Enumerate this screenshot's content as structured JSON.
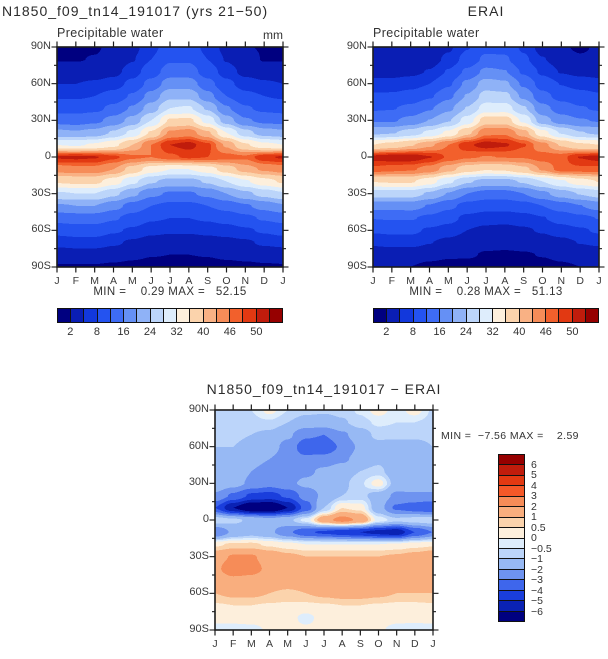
{
  "figure": {
    "background": "#ffffff",
    "text_color": "#2e2e2e"
  },
  "chart_data": {
    "type": "heatmap",
    "subtype": "filled-contour latitude-by-month (Hovmoller) climatology",
    "x_categories": [
      "J",
      "F",
      "M",
      "A",
      "M",
      "J",
      "J",
      "A",
      "S",
      "O",
      "N",
      "D",
      "J"
    ],
    "y_tick_labels": [
      "90N",
      "60N",
      "30N",
      "0",
      "30S",
      "60S",
      "90S"
    ],
    "y_lats": [
      90,
      80,
      70,
      60,
      50,
      40,
      30,
      20,
      10,
      0,
      -10,
      -20,
      -30,
      -40,
      -50,
      -60,
      -70,
      -80,
      -90
    ],
    "grid": "off",
    "pw_scale": {
      "levels": [
        2,
        5,
        8,
        12,
        16,
        20,
        24,
        28,
        32,
        36,
        40,
        43,
        46,
        48,
        50,
        52
      ],
      "colors": [
        "#000080",
        "#0A1EB4",
        "#1238DC",
        "#2453F0",
        "#3E6CF5",
        "#6590F5",
        "#8FB2F7",
        "#BCD5FA",
        "#DEEDFC",
        "#FDEFDC",
        "#FBD3AC",
        "#F9B184",
        "#F68C58",
        "#F2602C",
        "#E23912",
        "#C01C0C",
        "#960000"
      ],
      "bar_tick_labels": [
        "2",
        "8",
        "16",
        "24",
        "32",
        "40",
        "46",
        "50"
      ],
      "bar_tick_boundary_index": [
        1,
        3,
        5,
        7,
        9,
        11,
        13,
        15
      ],
      "segment_count": 17
    },
    "diff_scale": {
      "levels": [
        -6,
        -5,
        -4,
        -3,
        -2,
        -1,
        -0.5,
        0,
        0.5,
        1,
        2,
        3,
        4,
        5,
        6
      ],
      "colors": [
        "#000080",
        "#0A22B4",
        "#1A3EDC",
        "#3E66EC",
        "#6E93F0",
        "#97B9F4",
        "#BCD5FA",
        "#DEEDFC",
        "#FDEFDC",
        "#FBD3AC",
        "#F9AE7E",
        "#F68C58",
        "#F45828",
        "#E23912",
        "#C01C0C",
        "#960000"
      ],
      "bar_tick_labels": [
        "6",
        "5",
        "4",
        "3",
        "2",
        "1",
        "0.5",
        "0",
        "−0.5",
        "−1",
        "−2",
        "−3",
        "−4",
        "−5",
        "−6"
      ],
      "segment_count": 16
    },
    "panels": [
      {
        "id": "model",
        "title": "N1850_f09_tn14_191017 (yrs 21−50)",
        "subtitle": "Precipitable water",
        "units": "mm",
        "scale": "pw",
        "stats": {
          "min": 0.29,
          "max": 52.15
        },
        "min_max_label": "MIN =    0.29 MAX =   52.15",
        "values": [
          [
            1.8,
            1.7,
            1.8,
            2.5,
            4,
            7,
            10,
            10,
            7,
            4,
            2.1,
            1.9,
            1.8
          ],
          [
            1.9,
            1.9,
            2.1,
            2.8,
            4.8,
            8,
            11.5,
            11.5,
            8,
            4.8,
            2.8,
            1.9,
            1.9
          ],
          [
            3,
            3,
            3.2,
            4,
            6.5,
            10,
            14,
            14,
            10,
            6.5,
            4,
            3.2,
            3
          ],
          [
            5,
            5,
            5.5,
            6.5,
            9,
            13.5,
            18,
            18,
            13.5,
            9,
            6.5,
            5.5,
            5
          ],
          [
            7.5,
            7.5,
            8,
            9.5,
            12.5,
            17.5,
            23,
            23,
            17.5,
            12,
            9,
            8,
            7.5
          ],
          [
            10.5,
            10.5,
            11,
            13,
            16.5,
            22,
            28,
            28.5,
            23.5,
            16.5,
            12.5,
            11,
            10.5
          ],
          [
            14.5,
            14,
            15,
            17.5,
            21.5,
            28,
            36.5,
            37,
            30.5,
            22,
            16.5,
            15,
            14.5
          ],
          [
            21,
            20.5,
            21.5,
            24.5,
            29,
            36.5,
            43.5,
            44.5,
            40.5,
            32,
            25.5,
            22,
            21
          ],
          [
            32,
            31.5,
            32.5,
            35,
            40,
            46,
            50,
            50.8,
            48.5,
            42.5,
            36.5,
            33,
            32
          ],
          [
            50.3,
            50.5,
            50.2,
            48.5,
            46.5,
            46,
            47.5,
            48.5,
            48,
            47,
            46.5,
            49.5,
            50.3
          ],
          [
            44.5,
            45,
            45,
            43,
            38.5,
            34,
            32,
            32,
            34,
            38,
            41.5,
            43.5,
            44.5
          ],
          [
            36.5,
            37,
            37,
            34,
            29,
            24.5,
            22.5,
            22.5,
            24.5,
            28,
            31.5,
            34.5,
            36.5
          ],
          [
            27.5,
            28,
            28,
            25,
            21,
            17,
            15.5,
            15.5,
            17,
            20,
            23,
            25.5,
            27.5
          ],
          [
            19.5,
            20,
            20,
            17.5,
            14.5,
            12,
            11,
            11,
            12,
            13.5,
            15.5,
            17.5,
            19.5
          ],
          [
            13.5,
            14,
            14,
            12.5,
            10.5,
            8.5,
            8,
            8,
            8.5,
            9.5,
            11,
            12.5,
            13.5
          ],
          [
            9.5,
            10,
            10,
            8.5,
            7.5,
            6,
            5.5,
            5.5,
            6,
            6.5,
            7.5,
            8.5,
            9.5
          ],
          [
            6,
            6.5,
            6.5,
            5.5,
            4.5,
            3.5,
            3.2,
            3.2,
            3.5,
            4,
            4.5,
            5.5,
            6
          ],
          [
            3.2,
            3.4,
            3.4,
            3,
            2.5,
            2.1,
            2,
            2,
            2.1,
            2.4,
            2.7,
            3,
            3.2
          ],
          [
            1.8,
            1.8,
            1.8,
            1.6,
            1.4,
            1.2,
            1.1,
            1.1,
            1.2,
            1.4,
            1.5,
            1.7,
            1.8
          ]
        ]
      },
      {
        "id": "erai",
        "title": "ERAI",
        "subtitle": "Precipitable water",
        "units": "",
        "scale": "pw",
        "stats": {
          "min": 0.28,
          "max": 51.13
        },
        "min_max_label": "MIN =    0.28 MAX =   51.13",
        "values": [
          [
            2.4,
            2.3,
            2.3,
            2.3,
            4.5,
            7.8,
            10.9,
            10.8,
            7.4,
            3.7,
            2.4,
            1.6,
            2.4
          ],
          [
            2.6,
            2.6,
            2.8,
            3.4,
            5.8,
            9.4,
            12.9,
            12.6,
            8.7,
            5.2,
            3.3,
            2.4,
            2.6
          ],
          [
            3.9,
            3.9,
            4.2,
            5.2,
            8.3,
            12.8,
            17,
            16.2,
            11.4,
            7.3,
            4.8,
            4.1,
            3.9
          ],
          [
            6,
            6,
            6.7,
            8,
            11.4,
            17.1,
            21.8,
            20.8,
            15.3,
            10.3,
            7.9,
            6.7,
            6
          ],
          [
            8.5,
            8.6,
            9.5,
            11.5,
            15.1,
            20.3,
            25.6,
            25.2,
            19.1,
            13.2,
            10.6,
            9.4,
            8.5
          ],
          [
            11.5,
            11.8,
            13,
            15.6,
            19.1,
            24.2,
            29.8,
            29.9,
            24.5,
            17.3,
            14.1,
            12.3,
            11.5
          ],
          [
            15.7,
            15.6,
            17.2,
            20.1,
            23.7,
            29.8,
            38.1,
            38.2,
            31.1,
            21.7,
            17.9,
            16.3,
            15.7
          ],
          [
            23.2,
            23.7,
            25.7,
            28.9,
            32.8,
            39.1,
            45.3,
            45.5,
            41.3,
            33.4,
            27.7,
            24.2,
            23.2
          ],
          [
            36,
            37.5,
            39.7,
            42.4,
            46,
            49.6,
            51,
            50.3,
            48.2,
            44.1,
            39.7,
            36.6,
            36
          ],
          [
            50.8,
            51.3,
            51.4,
            50.1,
            47.7,
            46.3,
            45.9,
            46.1,
            46.2,
            47.2,
            47.3,
            50.1,
            50.8
          ],
          [
            47.5,
            46.8,
            46.4,
            44.8,
            41.3,
            37.8,
            36.2,
            36.6,
            39,
            43.4,
            47.3,
            47.5,
            47.5
          ],
          [
            36.1,
            36.4,
            36.4,
            33.6,
            28.8,
            24.5,
            22.5,
            22.5,
            24.5,
            28,
            31.4,
            34.2,
            36.1
          ],
          [
            25.9,
            25.9,
            25.9,
            23.4,
            19.8,
            16,
            14.5,
            14.5,
            16,
            19,
            21.9,
            24.2,
            25.9
          ],
          [
            17.7,
            17.4,
            17.7,
            15.7,
            13,
            10.6,
            9.5,
            9.4,
            10.4,
            12,
            14.1,
            15.9,
            17.7
          ],
          [
            12.1,
            12.3,
            12.3,
            11.1,
            9.2,
            7.1,
            6.3,
            6.1,
            6.6,
            7.8,
            9.6,
            11.1,
            12.1
          ],
          [
            8.5,
            8.8,
            8.8,
            7.5,
            6.6,
            5,
            4.3,
            4.1,
            4.6,
            5.3,
            6.5,
            7.5,
            8.5
          ],
          [
            5.6,
            6,
            6,
            5.1,
            4.1,
            3.1,
            2.8,
            2.7,
            3,
            3.6,
            4.1,
            5.1,
            5.6
          ],
          [
            2.9,
            3.1,
            3.1,
            2.7,
            2.3,
            2.3,
            1.8,
            1.7,
            1.8,
            2.1,
            2.5,
            2.8,
            2.9
          ],
          [
            2.1,
            2.1,
            2,
            1.5,
            1.3,
            1.1,
            1,
            1,
            1.1,
            1.3,
            1.7,
            2,
            2.1
          ]
        ]
      },
      {
        "id": "difference",
        "title": "N1850_f09_tn14_191017 − ERAI",
        "subtitle": "",
        "units": "",
        "scale": "diff",
        "stats": {
          "min": -7.56,
          "max": 2.59
        },
        "min_max_label": "MIN =  −7.56 MAX =    2.59",
        "values": [
          [
            -0.6,
            -0.6,
            -0.5,
            0.2,
            -0.5,
            -0.8,
            -0.9,
            -0.8,
            -0.4,
            0.3,
            -0.3,
            0.3,
            -0.6
          ],
          [
            -0.7,
            -0.7,
            -0.7,
            -0.6,
            -1,
            -1.4,
            -1.4,
            -1.1,
            -0.7,
            -0.4,
            -0.5,
            -0.5,
            -0.7
          ],
          [
            -0.9,
            -0.9,
            -1,
            -1.2,
            -1.8,
            -2.8,
            -3,
            -2.2,
            -1.4,
            -0.8,
            -0.8,
            -0.9,
            -0.9
          ],
          [
            -1,
            -1,
            -1.2,
            -1.5,
            -2.4,
            -3.6,
            -3.8,
            -2.8,
            -1.8,
            -1.3,
            -1.4,
            -1.2,
            -1
          ],
          [
            -1,
            -1.1,
            -1.5,
            -2,
            -2.6,
            -2.8,
            -2.6,
            -2.2,
            -1.6,
            -1.2,
            -1.6,
            -1.4,
            -1
          ],
          [
            -1,
            -1.3,
            -2,
            -2.6,
            -2.6,
            -2.2,
            -1.8,
            -1.4,
            -1,
            -0.8,
            -1.6,
            -1.3,
            -1
          ],
          [
            -1.2,
            -1.6,
            -2.2,
            -2.6,
            -2.2,
            -1.8,
            -1.6,
            -1.2,
            -0.6,
            0.3,
            -1.4,
            -1.3,
            -1.2
          ],
          [
            -2.2,
            -3.2,
            -4.2,
            -4.4,
            -3.8,
            -2.6,
            -1.8,
            -1,
            -0.8,
            -1.4,
            -2.2,
            -2.2,
            -2.2
          ],
          [
            -4,
            -6,
            -7.2,
            -7.4,
            -6,
            -3.6,
            -1,
            0.5,
            0.3,
            -1.6,
            -3.2,
            -3.6,
            -4
          ],
          [
            -0.5,
            -0.8,
            -1.2,
            -1.6,
            -1.2,
            -0.3,
            1.6,
            2.4,
            1.8,
            -0.2,
            -0.8,
            -0.6,
            -0.5
          ],
          [
            -3,
            -1.8,
            -1.4,
            -1.8,
            -2.8,
            -3.8,
            -4.2,
            -4.6,
            -5,
            -5.4,
            -5.8,
            -4,
            -3
          ],
          [
            0.4,
            0.6,
            0.6,
            0.4,
            0.2,
            0,
            0,
            0,
            0,
            0,
            0.1,
            0.3,
            0.4
          ],
          [
            1.6,
            2.1,
            2.1,
            1.6,
            1.2,
            1,
            1,
            1,
            1,
            1,
            1.1,
            1.3,
            1.6
          ],
          [
            1.8,
            2.6,
            2.3,
            1.8,
            1.5,
            1.4,
            1.5,
            1.6,
            1.6,
            1.5,
            1.4,
            1.6,
            1.8
          ],
          [
            1.4,
            1.7,
            1.7,
            1.4,
            1.3,
            1.4,
            1.7,
            1.9,
            1.9,
            1.7,
            1.4,
            1.4,
            1.4
          ],
          [
            1,
            1.2,
            1.2,
            1,
            0.9,
            1,
            1.2,
            1.4,
            1.4,
            1.2,
            1,
            1,
            1
          ],
          [
            0.45,
            0.5,
            0.5,
            0.45,
            0.4,
            0.4,
            0.45,
            0.5,
            0.5,
            0.45,
            0.4,
            0.4,
            0.45
          ],
          [
            0.3,
            0.3,
            0.3,
            0.3,
            0.2,
            -0.15,
            0.2,
            0.3,
            0.3,
            0.3,
            0.2,
            0.2,
            0.3
          ],
          [
            -0.3,
            -0.3,
            -0.2,
            0.1,
            0.1,
            0.1,
            0.1,
            0.1,
            0.1,
            0.1,
            -0.2,
            -0.3,
            -0.3
          ]
        ]
      }
    ]
  }
}
